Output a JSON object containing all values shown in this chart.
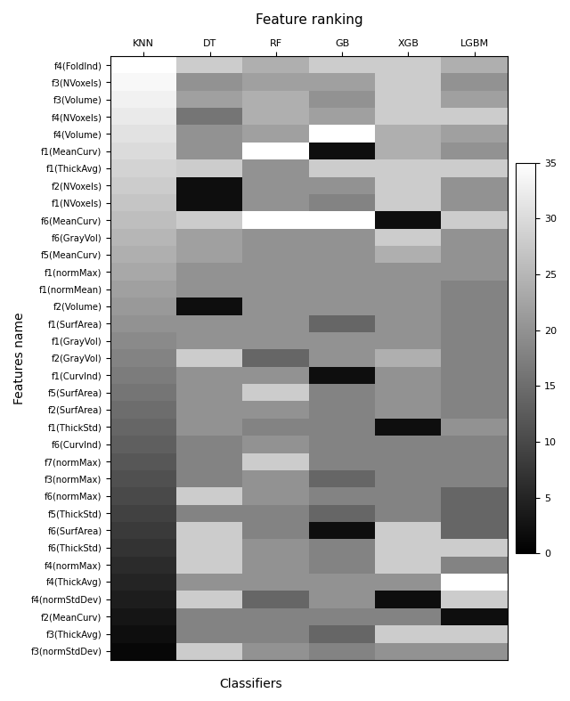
{
  "title": "Feature ranking",
  "xlabel": "Classifiers",
  "ylabel": "Features name",
  "classifiers": [
    "KNN",
    "DT",
    "RF",
    "GB",
    "XGB",
    "LGBM"
  ],
  "features": [
    "f4(FoldInd)",
    "f3(NVoxels)",
    "f3(Volume)",
    "f4(NVoxels)",
    "f4(Volume)",
    "f1(MeanCurv)",
    "f1(ThickAvg)",
    "f2(NVoxels)",
    "f1(NVoxels)",
    "f6(MeanCurv)",
    "f6(GrayVol)",
    "f5(MeanCurv)",
    "f1(normMax)",
    "f1(normMean)",
    "f2(Volume)",
    "f1(SurfArea)",
    "f1(GrayVol)",
    "f2(GrayVol)",
    "f1(CurvInd)",
    "f5(SurfArea)",
    "f2(SurfArea)",
    "f1(ThickStd)",
    "f6(CurvInd)",
    "f7(normMax)",
    "f3(normMax)",
    "f6(normMax)",
    "f5(ThickStd)",
    "f6(SurfArea)",
    "f6(ThickStd)",
    "f4(normMax)",
    "f4(ThickAvg)",
    "f4(normStdDev)",
    "f2(MeanCurv)",
    "f3(ThickAvg)",
    "f3(normStdDev)"
  ],
  "heatmap_values": [
    [
      35,
      28,
      24,
      28,
      28,
      24
    ],
    [
      34,
      20,
      22,
      22,
      28,
      20
    ],
    [
      33,
      22,
      24,
      20,
      28,
      22
    ],
    [
      32,
      16,
      24,
      22,
      28,
      28
    ],
    [
      31,
      20,
      22,
      35,
      24,
      22
    ],
    [
      30,
      20,
      35,
      2,
      24,
      20
    ],
    [
      29,
      28,
      20,
      28,
      28,
      28
    ],
    [
      28,
      2,
      20,
      20,
      28,
      20
    ],
    [
      27,
      2,
      20,
      18,
      28,
      20
    ],
    [
      26,
      28,
      35,
      35,
      2,
      28
    ],
    [
      25,
      22,
      20,
      20,
      28,
      20
    ],
    [
      24,
      22,
      20,
      20,
      24,
      20
    ],
    [
      23,
      20,
      20,
      20,
      20,
      20
    ],
    [
      22,
      20,
      20,
      20,
      20,
      18
    ],
    [
      21,
      2,
      20,
      20,
      20,
      18
    ],
    [
      20,
      20,
      20,
      14,
      20,
      18
    ],
    [
      19,
      20,
      20,
      20,
      20,
      18
    ],
    [
      18,
      28,
      14,
      20,
      24,
      18
    ],
    [
      17,
      20,
      20,
      2,
      20,
      18
    ],
    [
      16,
      20,
      28,
      18,
      20,
      18
    ],
    [
      15,
      20,
      20,
      18,
      20,
      18
    ],
    [
      14,
      20,
      18,
      18,
      2,
      20
    ],
    [
      13,
      18,
      20,
      18,
      18,
      18
    ],
    [
      12,
      18,
      28,
      18,
      18,
      18
    ],
    [
      11,
      18,
      20,
      14,
      18,
      18
    ],
    [
      10,
      28,
      20,
      18,
      18,
      14
    ],
    [
      9,
      18,
      18,
      14,
      18,
      14
    ],
    [
      8,
      28,
      18,
      2,
      28,
      14
    ],
    [
      7,
      28,
      20,
      18,
      28,
      28
    ],
    [
      6,
      28,
      20,
      18,
      28,
      18
    ],
    [
      5,
      20,
      20,
      20,
      20,
      35
    ],
    [
      4,
      28,
      14,
      20,
      2,
      28
    ],
    [
      3,
      18,
      18,
      18,
      18,
      2
    ],
    [
      2,
      18,
      18,
      14,
      28,
      28
    ],
    [
      1,
      28,
      20,
      18,
      20,
      20
    ]
  ],
  "vmin": 0,
  "vmax": 35,
  "cbar_ticks": [
    0,
    5,
    10,
    15,
    20,
    25,
    30,
    35
  ],
  "title_fontsize": 11,
  "tick_fontsize": 8,
  "ylabel_fontsize": 10,
  "xlabel_fontsize": 10,
  "figsize": [
    6.4,
    7.87
  ],
  "dpi": 100
}
